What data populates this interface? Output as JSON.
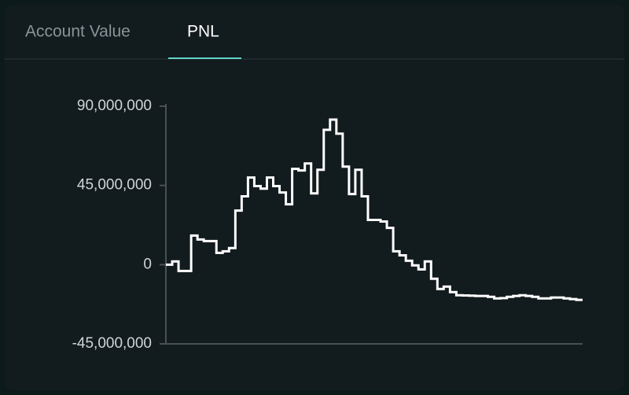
{
  "tabs": [
    "Account Value",
    "PNL"
  ],
  "chart_data": {
    "type": "step-line",
    "ylim": [
      -45000000,
      90000000
    ],
    "yticks": [
      {
        "value": 90000000,
        "label": "90,000,000"
      },
      {
        "value": 45000000,
        "label": "45,000,000"
      },
      0,
      {
        "value": -45000000,
        "label": "-45,000,000"
      }
    ],
    "series": [
      {
        "color": "#ffffff",
        "values": [
          0,
          1800000,
          -3600000,
          -3600000,
          16500000,
          14300000,
          13400000,
          13400000,
          6700000,
          7600000,
          9400000,
          30700000,
          38800000,
          49500000,
          44600000,
          43200000,
          49500000,
          44600000,
          41000000,
          34300000,
          54400000,
          53500000,
          57500000,
          40500000,
          53900000,
          76600000,
          82400000,
          74400000,
          55700000,
          40100000,
          53900000,
          38800000,
          25400000,
          25400000,
          24500000,
          20900000,
          7600000,
          5300000,
          2200000,
          -400000,
          -2700000,
          1800000,
          -8000000,
          -13800000,
          -12500000,
          -15600000,
          -17400000,
          -17500000,
          -17600000,
          -17800000,
          -17800000,
          -18300000,
          -19200000,
          -19000000,
          -18300000,
          -17800000,
          -17400000,
          -17800000,
          -18300000,
          -19200000,
          -19200000,
          -18700000,
          -18700000,
          -19200000,
          -19600000,
          -20000000
        ]
      }
    ]
  }
}
